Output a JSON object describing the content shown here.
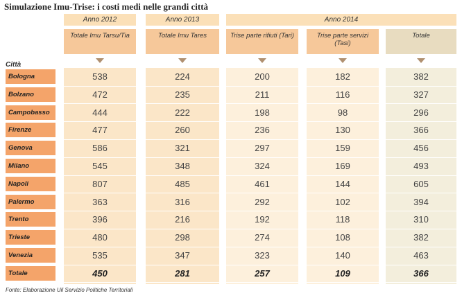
{
  "title": "Simulazione Imu-Trise: i costi medi nelle grandi città",
  "row_header": "Città",
  "column_groups": [
    {
      "label": "Anno 2012",
      "columns": [
        "Totale Imu Tarsu/Tia"
      ]
    },
    {
      "label": "Anno 2013",
      "columns": [
        "Totale Imu Tares"
      ]
    },
    {
      "label": "Anno 2014",
      "columns": [
        "Trise parte rifiuti (Tari)",
        "Trise parte servizi (Tasi)",
        "Totale"
      ]
    }
  ],
  "rows": [
    {
      "city": "Bologna",
      "values": [
        538,
        224,
        200,
        182,
        382
      ]
    },
    {
      "city": "Bolzano",
      "values": [
        472,
        235,
        211,
        116,
        327
      ]
    },
    {
      "city": "Campobasso",
      "values": [
        444,
        222,
        198,
        98,
        296
      ]
    },
    {
      "city": "Firenze",
      "values": [
        477,
        260,
        236,
        130,
        366
      ]
    },
    {
      "city": "Genova",
      "values": [
        586,
        321,
        297,
        159,
        456
      ]
    },
    {
      "city": "Milano",
      "values": [
        545,
        348,
        324,
        169,
        493
      ]
    },
    {
      "city": "Napoli",
      "values": [
        807,
        485,
        461,
        144,
        605
      ]
    },
    {
      "city": "Palermo",
      "values": [
        363,
        316,
        292,
        102,
        394
      ]
    },
    {
      "city": "Trento",
      "values": [
        396,
        216,
        192,
        118,
        310
      ]
    },
    {
      "city": "Trieste",
      "values": [
        480,
        298,
        274,
        108,
        382
      ]
    },
    {
      "city": "Venezia",
      "values": [
        535,
        347,
        323,
        140,
        463
      ]
    }
  ],
  "total": {
    "label": "Totale",
    "values": [
      450,
      281,
      257,
      109,
      366
    ]
  },
  "source": "Fonte: Elaborazione Uil Servizio Politiche Territoriali"
}
